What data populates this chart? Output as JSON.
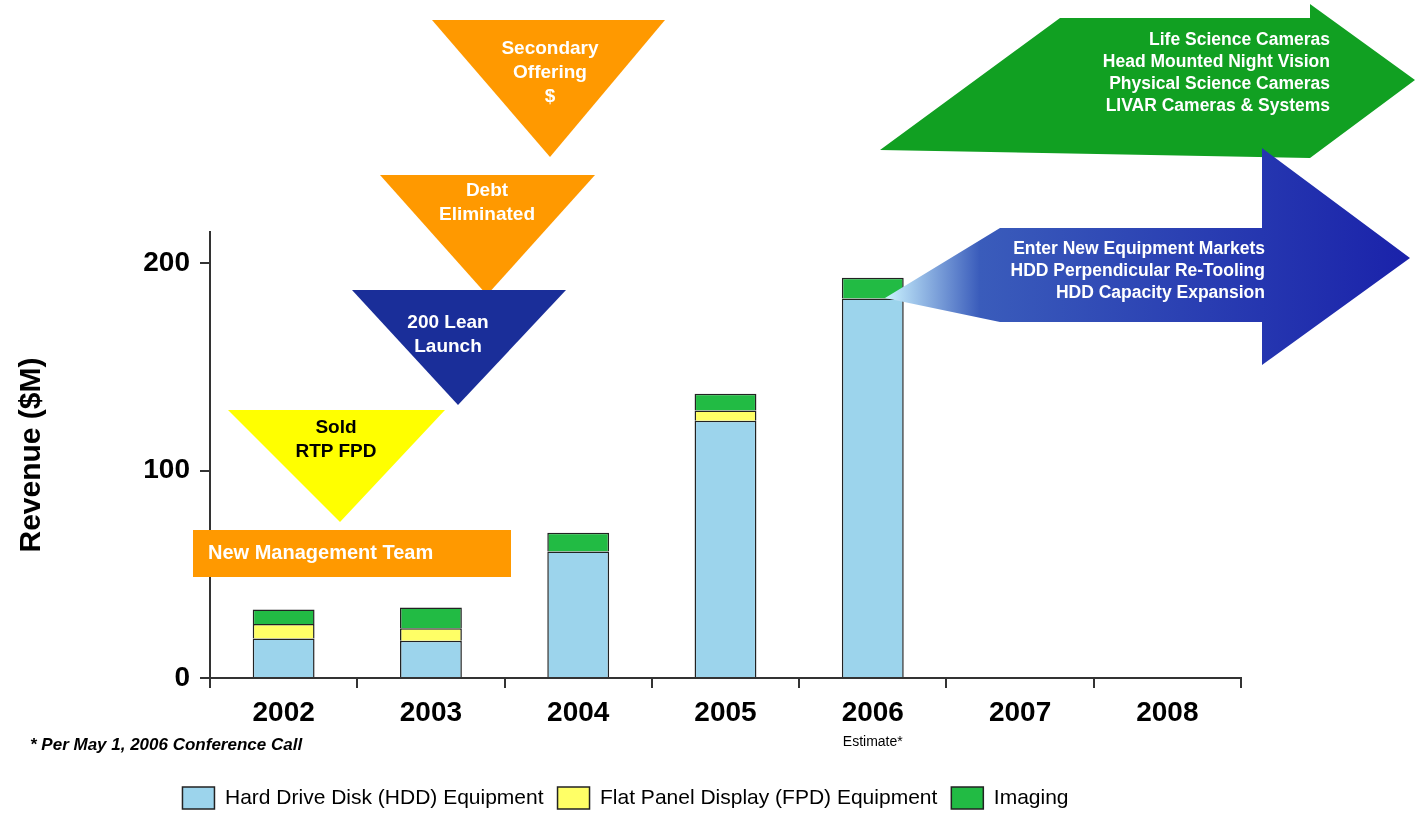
{
  "chart_data": {
    "type": "bar",
    "stacked": true,
    "ylabel": "Revenue ($M)",
    "categories": [
      "2002",
      "2003",
      "2004",
      "2005",
      "2006",
      "2007",
      "2008"
    ],
    "series": [
      {
        "name": "Hard Drive Disk (HDD) Equipment",
        "color": "#9cd4ec",
        "values": [
          19,
          18,
          61,
          124,
          183,
          null,
          null
        ]
      },
      {
        "name": "Flat Panel Display (FPD) Equipment",
        "color": "#ffff66",
        "values": [
          7,
          6,
          0,
          5,
          0,
          null,
          null
        ]
      },
      {
        "name": "Imaging",
        "color": "#22bb44",
        "values": [
          7,
          10,
          9,
          8,
          10,
          null,
          null
        ]
      }
    ],
    "ylim": [
      0,
      215
    ],
    "yticks": [
      0,
      100,
      200
    ],
    "grid": false,
    "legend": "bottom",
    "annotations": [
      "* Per May 1, 2006 Conference Call",
      "Estimate*",
      "Secondary\nOffering\n$",
      "Debt\nEliminated",
      "200 Lean\nLaunch",
      "Sold\nRTP FPD",
      "New Management Team",
      "Life Science Cameras\nHead Mounted Night Vision\nPhysical Science Cameras\nLIVAR Cameras & Systems",
      "Enter New Equipment Markets\nHDD Perpendicular Re-Tooling\nHDD Capacity Expansion"
    ]
  }
}
